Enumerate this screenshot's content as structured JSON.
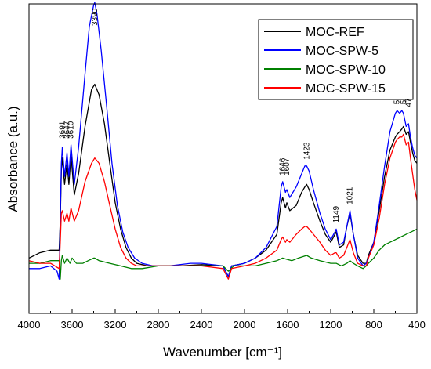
{
  "chart_data": {
    "type": "line",
    "xlabel": "Wavenumber [cm⁻¹]",
    "ylabel": "Absorbance (a.u.)",
    "xlim": [
      4000,
      400
    ],
    "x_reversed": true,
    "y_ticks_shown": false,
    "grid": false,
    "legend": "top-right",
    "x_ticks": [
      4000,
      3600,
      3200,
      2800,
      2400,
      2000,
      1600,
      1200,
      800,
      400
    ],
    "peak_labels": [
      {
        "label": "3691",
        "x": 3691
      },
      {
        "label": "3647",
        "x": 3647
      },
      {
        "label": "3610",
        "x": 3610
      },
      {
        "label": "3390",
        "x": 3390
      },
      {
        "label": "1646",
        "x": 1646
      },
      {
        "label": "1607",
        "x": 1607
      },
      {
        "label": "1423",
        "x": 1423
      },
      {
        "label": "1149",
        "x": 1149
      },
      {
        "label": "1021",
        "x": 1021
      },
      {
        "label": "584",
        "x": 584
      },
      {
        "label": "525",
        "x": 525
      },
      {
        "label": "478",
        "x": 478
      }
    ],
    "series": [
      {
        "name": "MOC-REF",
        "color": "#000000",
        "points": [
          [
            4000,
            0.24
          ],
          [
            3900,
            0.26
          ],
          [
            3800,
            0.27
          ],
          [
            3720,
            0.27
          ],
          [
            3710,
            0.38
          ],
          [
            3700,
            0.57
          ],
          [
            3691,
            0.62
          ],
          [
            3670,
            0.52
          ],
          [
            3647,
            0.6
          ],
          [
            3630,
            0.52
          ],
          [
            3610,
            0.63
          ],
          [
            3580,
            0.48
          ],
          [
            3540,
            0.56
          ],
          [
            3480,
            0.74
          ],
          [
            3420,
            0.88
          ],
          [
            3390,
            0.9
          ],
          [
            3350,
            0.86
          ],
          [
            3300,
            0.75
          ],
          [
            3250,
            0.6
          ],
          [
            3200,
            0.45
          ],
          [
            3150,
            0.35
          ],
          [
            3100,
            0.28
          ],
          [
            3050,
            0.24
          ],
          [
            3000,
            0.22
          ],
          [
            2900,
            0.21
          ],
          [
            2800,
            0.21
          ],
          [
            2600,
            0.21
          ],
          [
            2400,
            0.215
          ],
          [
            2200,
            0.21
          ],
          [
            2150,
            0.17
          ],
          [
            2120,
            0.21
          ],
          [
            2000,
            0.22
          ],
          [
            1900,
            0.24
          ],
          [
            1800,
            0.27
          ],
          [
            1700,
            0.33
          ],
          [
            1660,
            0.45
          ],
          [
            1646,
            0.47
          ],
          [
            1620,
            0.43
          ],
          [
            1607,
            0.45
          ],
          [
            1580,
            0.42
          ],
          [
            1520,
            0.44
          ],
          [
            1470,
            0.49
          ],
          [
            1440,
            0.51
          ],
          [
            1423,
            0.52
          ],
          [
            1400,
            0.5
          ],
          [
            1360,
            0.45
          ],
          [
            1300,
            0.38
          ],
          [
            1250,
            0.33
          ],
          [
            1200,
            0.3
          ],
          [
            1160,
            0.33
          ],
          [
            1149,
            0.34
          ],
          [
            1120,
            0.28
          ],
          [
            1080,
            0.29
          ],
          [
            1050,
            0.36
          ],
          [
            1021,
            0.41
          ],
          [
            990,
            0.33
          ],
          [
            950,
            0.25
          ],
          [
            900,
            0.22
          ],
          [
            870,
            0.22
          ],
          [
            850,
            0.25
          ],
          [
            800,
            0.3
          ],
          [
            750,
            0.42
          ],
          [
            700,
            0.55
          ],
          [
            650,
            0.65
          ],
          [
            600,
            0.7
          ],
          [
            584,
            0.71
          ],
          [
            560,
            0.72
          ],
          [
            540,
            0.73
          ],
          [
            525,
            0.74
          ],
          [
            500,
            0.71
          ],
          [
            478,
            0.72
          ],
          [
            460,
            0.68
          ],
          [
            440,
            0.64
          ],
          [
            420,
            0.61
          ],
          [
            400,
            0.6
          ]
        ]
      },
      {
        "name": "MOC-SPW-5",
        "color": "#0000ff",
        "points": [
          [
            4000,
            0.2
          ],
          [
            3900,
            0.2
          ],
          [
            3800,
            0.21
          ],
          [
            3740,
            0.19
          ],
          [
            3720,
            0.16
          ],
          [
            3710,
            0.4
          ],
          [
            3700,
            0.6
          ],
          [
            3691,
            0.66
          ],
          [
            3670,
            0.55
          ],
          [
            3647,
            0.64
          ],
          [
            3630,
            0.55
          ],
          [
            3610,
            0.67
          ],
          [
            3580,
            0.52
          ],
          [
            3540,
            0.66
          ],
          [
            3480,
            0.94
          ],
          [
            3440,
            1.12
          ],
          [
            3400,
            1.2
          ],
          [
            3390,
            1.21
          ],
          [
            3370,
            1.17
          ],
          [
            3330,
            1.03
          ],
          [
            3280,
            0.82
          ],
          [
            3230,
            0.6
          ],
          [
            3180,
            0.44
          ],
          [
            3130,
            0.34
          ],
          [
            3080,
            0.28
          ],
          [
            3020,
            0.24
          ],
          [
            2950,
            0.22
          ],
          [
            2850,
            0.21
          ],
          [
            2700,
            0.21
          ],
          [
            2500,
            0.22
          ],
          [
            2400,
            0.22
          ],
          [
            2200,
            0.21
          ],
          [
            2150,
            0.17
          ],
          [
            2120,
            0.21
          ],
          [
            2000,
            0.22
          ],
          [
            1900,
            0.24
          ],
          [
            1800,
            0.28
          ],
          [
            1700,
            0.36
          ],
          [
            1660,
            0.51
          ],
          [
            1646,
            0.53
          ],
          [
            1620,
            0.49
          ],
          [
            1607,
            0.5
          ],
          [
            1580,
            0.47
          ],
          [
            1520,
            0.51
          ],
          [
            1470,
            0.56
          ],
          [
            1440,
            0.59
          ],
          [
            1423,
            0.59
          ],
          [
            1400,
            0.57
          ],
          [
            1360,
            0.5
          ],
          [
            1300,
            0.41
          ],
          [
            1250,
            0.35
          ],
          [
            1200,
            0.31
          ],
          [
            1160,
            0.34
          ],
          [
            1149,
            0.35
          ],
          [
            1120,
            0.29
          ],
          [
            1080,
            0.3
          ],
          [
            1050,
            0.36
          ],
          [
            1021,
            0.42
          ],
          [
            990,
            0.33
          ],
          [
            950,
            0.24
          ],
          [
            900,
            0.21
          ],
          [
            870,
            0.22
          ],
          [
            850,
            0.24
          ],
          [
            800,
            0.3
          ],
          [
            750,
            0.44
          ],
          [
            700,
            0.59
          ],
          [
            650,
            0.72
          ],
          [
            600,
            0.79
          ],
          [
            584,
            0.8
          ],
          [
            560,
            0.79
          ],
          [
            540,
            0.8
          ],
          [
            525,
            0.79
          ],
          [
            500,
            0.74
          ],
          [
            478,
            0.75
          ],
          [
            460,
            0.7
          ],
          [
            440,
            0.66
          ],
          [
            420,
            0.63
          ],
          [
            400,
            0.62
          ]
        ]
      },
      {
        "name": "MOC-SPW-10",
        "color": "#008000",
        "points": [
          [
            4000,
            0.22
          ],
          [
            3900,
            0.22
          ],
          [
            3800,
            0.23
          ],
          [
            3720,
            0.23
          ],
          [
            3710,
            0.16
          ],
          [
            3700,
            0.23
          ],
          [
            3691,
            0.25
          ],
          [
            3670,
            0.22
          ],
          [
            3647,
            0.24
          ],
          [
            3620,
            0.22
          ],
          [
            3600,
            0.24
          ],
          [
            3560,
            0.22
          ],
          [
            3500,
            0.22
          ],
          [
            3450,
            0.23
          ],
          [
            3400,
            0.24
          ],
          [
            3390,
            0.24
          ],
          [
            3350,
            0.23
          ],
          [
            3250,
            0.22
          ],
          [
            3150,
            0.21
          ],
          [
            3050,
            0.2
          ],
          [
            2950,
            0.2
          ],
          [
            2800,
            0.21
          ],
          [
            2600,
            0.21
          ],
          [
            2400,
            0.21
          ],
          [
            2200,
            0.21
          ],
          [
            2150,
            0.19
          ],
          [
            2100,
            0.21
          ],
          [
            2000,
            0.21
          ],
          [
            1900,
            0.21
          ],
          [
            1800,
            0.22
          ],
          [
            1700,
            0.23
          ],
          [
            1646,
            0.24
          ],
          [
            1607,
            0.235
          ],
          [
            1560,
            0.23
          ],
          [
            1500,
            0.24
          ],
          [
            1423,
            0.25
          ],
          [
            1380,
            0.24
          ],
          [
            1300,
            0.23
          ],
          [
            1200,
            0.22
          ],
          [
            1149,
            0.22
          ],
          [
            1100,
            0.21
          ],
          [
            1050,
            0.22
          ],
          [
            1021,
            0.23
          ],
          [
            990,
            0.22
          ],
          [
            950,
            0.21
          ],
          [
            900,
            0.2
          ],
          [
            870,
            0.21
          ],
          [
            850,
            0.22
          ],
          [
            800,
            0.24
          ],
          [
            750,
            0.27
          ],
          [
            700,
            0.29
          ],
          [
            650,
            0.3
          ],
          [
            600,
            0.31
          ],
          [
            550,
            0.32
          ],
          [
            500,
            0.33
          ],
          [
            450,
            0.34
          ],
          [
            400,
            0.35
          ]
        ]
      },
      {
        "name": "MOC-SPW-15",
        "color": "#ff0000",
        "points": [
          [
            4000,
            0.23
          ],
          [
            3900,
            0.22
          ],
          [
            3800,
            0.22
          ],
          [
            3720,
            0.2
          ],
          [
            3710,
            0.3
          ],
          [
            3700,
            0.41
          ],
          [
            3691,
            0.42
          ],
          [
            3670,
            0.38
          ],
          [
            3647,
            0.41
          ],
          [
            3630,
            0.38
          ],
          [
            3610,
            0.43
          ],
          [
            3580,
            0.38
          ],
          [
            3540,
            0.42
          ],
          [
            3480,
            0.53
          ],
          [
            3420,
            0.6
          ],
          [
            3390,
            0.62
          ],
          [
            3350,
            0.6
          ],
          [
            3300,
            0.53
          ],
          [
            3250,
            0.44
          ],
          [
            3200,
            0.35
          ],
          [
            3150,
            0.28
          ],
          [
            3100,
            0.24
          ],
          [
            3050,
            0.22
          ],
          [
            3000,
            0.21
          ],
          [
            2900,
            0.21
          ],
          [
            2800,
            0.21
          ],
          [
            2600,
            0.21
          ],
          [
            2400,
            0.21
          ],
          [
            2200,
            0.2
          ],
          [
            2150,
            0.16
          ],
          [
            2120,
            0.2
          ],
          [
            2000,
            0.21
          ],
          [
            1900,
            0.22
          ],
          [
            1800,
            0.24
          ],
          [
            1700,
            0.27
          ],
          [
            1660,
            0.31
          ],
          [
            1646,
            0.32
          ],
          [
            1620,
            0.3
          ],
          [
            1607,
            0.31
          ],
          [
            1580,
            0.3
          ],
          [
            1520,
            0.33
          ],
          [
            1470,
            0.35
          ],
          [
            1440,
            0.36
          ],
          [
            1423,
            0.36
          ],
          [
            1400,
            0.35
          ],
          [
            1360,
            0.33
          ],
          [
            1300,
            0.3
          ],
          [
            1250,
            0.27
          ],
          [
            1200,
            0.25
          ],
          [
            1160,
            0.26
          ],
          [
            1149,
            0.26
          ],
          [
            1120,
            0.24
          ],
          [
            1080,
            0.25
          ],
          [
            1050,
            0.28
          ],
          [
            1021,
            0.31
          ],
          [
            990,
            0.26
          ],
          [
            950,
            0.22
          ],
          [
            900,
            0.21
          ],
          [
            870,
            0.21
          ],
          [
            850,
            0.24
          ],
          [
            800,
            0.29
          ],
          [
            750,
            0.39
          ],
          [
            700,
            0.52
          ],
          [
            650,
            0.62
          ],
          [
            600,
            0.68
          ],
          [
            584,
            0.69
          ],
          [
            560,
            0.7
          ],
          [
            540,
            0.7
          ],
          [
            525,
            0.71
          ],
          [
            500,
            0.67
          ],
          [
            478,
            0.68
          ],
          [
            460,
            0.62
          ],
          [
            440,
            0.56
          ],
          [
            420,
            0.5
          ],
          [
            400,
            0.46
          ]
        ]
      }
    ]
  }
}
